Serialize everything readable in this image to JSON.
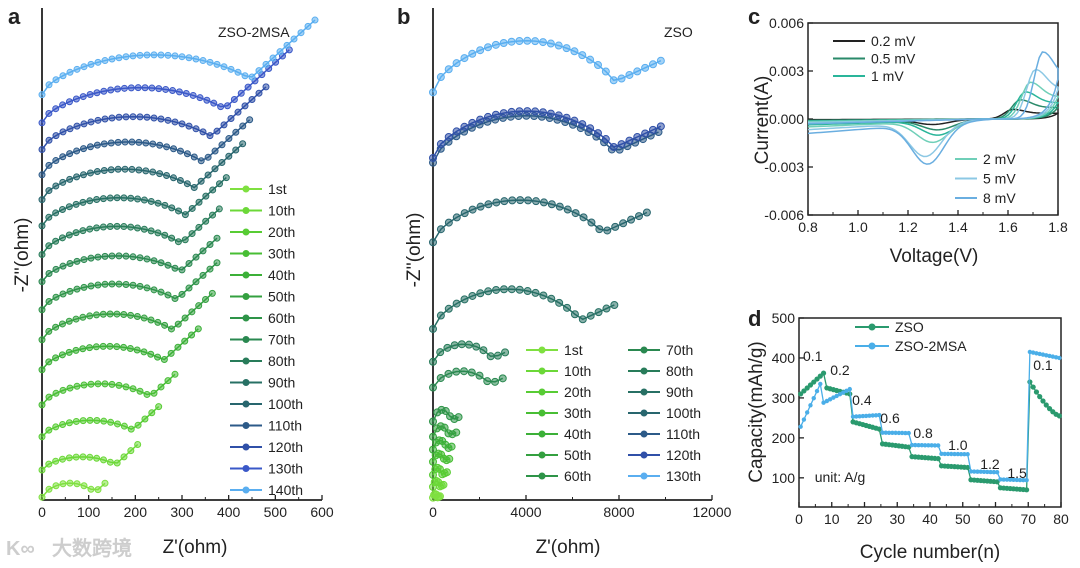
{
  "watermark": {
    "text": "大数跨境",
    "logo": "K∞"
  },
  "chart_data": [
    {
      "panel": "a",
      "type": "scatter",
      "title": "ZSO-2MSA",
      "xlabel": "Z'(ohm)",
      "ylabel": "-Z''(ohm)",
      "xlim": [
        0,
        600
      ],
      "ylim": [
        0,
        1050
      ],
      "xticks": [
        "0",
        "100",
        "200",
        "300",
        "400",
        "500",
        "600"
      ],
      "legend_position": "right",
      "series": [
        {
          "name": "1st",
          "color": "#7fe040",
          "offset": 6,
          "arc_diameter": 120,
          "arc_height": 30,
          "end": 135
        },
        {
          "name": "10th",
          "color": "#6cd838",
          "offset": 64,
          "arc_diameter": 170,
          "arc_height": 28,
          "end": 205
        },
        {
          "name": "20th",
          "color": "#58cc34",
          "offset": 135,
          "arc_diameter": 210,
          "arc_height": 35,
          "end": 250
        },
        {
          "name": "30th",
          "color": "#48be34",
          "offset": 203,
          "arc_diameter": 250,
          "arc_height": 45,
          "end": 285
        },
        {
          "name": "40th",
          "color": "#3cb038",
          "offset": 278,
          "arc_diameter": 280,
          "arc_height": 50,
          "end": 335
        },
        {
          "name": "50th",
          "color": "#34a040",
          "offset": 342,
          "arc_diameter": 300,
          "arc_height": 55,
          "end": 365
        },
        {
          "name": "60th",
          "color": "#2e9448",
          "offset": 406,
          "arc_diameter": 310,
          "arc_height": 55,
          "end": 375
        },
        {
          "name": "70th",
          "color": "#2a8850",
          "offset": 466,
          "arc_diameter": 320,
          "arc_height": 55,
          "end": 375
        },
        {
          "name": "80th",
          "color": "#287c5a",
          "offset": 524,
          "arc_diameter": 320,
          "arc_height": 60,
          "end": 380
        },
        {
          "name": "90th",
          "color": "#277064",
          "offset": 585,
          "arc_diameter": 330,
          "arc_height": 60,
          "end": 395
        },
        {
          "name": "100th",
          "color": "#28666e",
          "offset": 641,
          "arc_diameter": 350,
          "arc_height": 65,
          "end": 430
        },
        {
          "name": "110th",
          "color": "#2c5a88",
          "offset": 694,
          "arc_diameter": 370,
          "arc_height": 70,
          "end": 445
        },
        {
          "name": "120th",
          "color": "#3050a8",
          "offset": 748,
          "arc_diameter": 390,
          "arc_height": 70,
          "end": 480
        },
        {
          "name": "130th",
          "color": "#3a58c8",
          "offset": 805,
          "arc_diameter": 420,
          "arc_height": 75,
          "end": 530
        },
        {
          "name": "140th",
          "color": "#5aaef0",
          "offset": 865,
          "arc_diameter": 480,
          "arc_height": 85,
          "end": 585
        }
      ]
    },
    {
      "panel": "b",
      "type": "scatter",
      "title": "ZSO",
      "xlabel": "Z'(ohm)",
      "ylabel": "-Z''(ohm)",
      "xlim": [
        0,
        12000
      ],
      "ylim": [
        0,
        21000
      ],
      "xticks": [
        "0",
        "4000",
        "8000",
        "12000"
      ],
      "legend_position": "bottom-right, two columns",
      "series": [
        {
          "name": "1st",
          "color": "#7fe040",
          "offset": 100,
          "arc_diameter": 200,
          "arc_height": 150,
          "end": 300
        },
        {
          "name": "10th",
          "color": "#6cd838",
          "offset": 560,
          "arc_diameter": 300,
          "arc_height": 250,
          "end": 450
        },
        {
          "name": "20th",
          "color": "#58cc34",
          "offset": 1070,
          "arc_diameter": 400,
          "arc_height": 300,
          "end": 600
        },
        {
          "name": "30th",
          "color": "#48be34",
          "offset": 1630,
          "arc_diameter": 500,
          "arc_height": 350,
          "end": 700
        },
        {
          "name": "40th",
          "color": "#3cb038",
          "offset": 2150,
          "arc_diameter": 600,
          "arc_height": 400,
          "end": 800
        },
        {
          "name": "50th",
          "color": "#34a040",
          "offset": 2700,
          "arc_diameter": 700,
          "arc_height": 450,
          "end": 1000
        },
        {
          "name": "60th",
          "color": "#2e9448",
          "offset": 3350,
          "arc_diameter": 800,
          "arc_height": 500,
          "end": 1100
        },
        {
          "name": "70th",
          "color": "#2a8850",
          "offset": 4800,
          "arc_diameter": 2500,
          "arc_height": 700,
          "end": 3000
        },
        {
          "name": "80th",
          "color": "#287c5a",
          "offset": 5900,
          "arc_diameter": 2600,
          "arc_height": 750,
          "end": 3100
        },
        {
          "name": "90th",
          "color": "#277064",
          "offset": 7300,
          "arc_diameter": 6500,
          "arc_height": 1700,
          "end": 7800
        },
        {
          "name": "100th",
          "color": "#28666e",
          "offset": 11000,
          "arc_diameter": 7500,
          "arc_height": 1800,
          "end": 9200
        },
        {
          "name": "110th",
          "color": "#2c5a88",
          "offset": 14400,
          "arc_diameter": 8000,
          "arc_height": 2000,
          "end": 9700
        },
        {
          "name": "120th",
          "color": "#3050a8",
          "offset": 14600,
          "arc_diameter": 8000,
          "arc_height": 2000,
          "end": 9800
        },
        {
          "name": "130th",
          "color": "#5aaef0",
          "offset": 17400,
          "arc_diameter": 8000,
          "arc_height": 2200,
          "end": 9800
        }
      ]
    },
    {
      "panel": "c",
      "type": "line",
      "xlabel": "Voltage(V)",
      "ylabel": "Current(A)",
      "xlim": [
        0.8,
        1.8
      ],
      "ylim": [
        -0.006,
        0.006
      ],
      "xticks": [
        "0.8",
        "1.0",
        "1.2",
        "1.4",
        "1.6",
        "1.8"
      ],
      "yticks": [
        "-0.006",
        "-0.003",
        "0.000",
        "0.003",
        "0.006"
      ],
      "legend_position": "top-left and bottom-right",
      "series": [
        {
          "name": "0.2 mV",
          "color": "#222222",
          "anodic_peak": [
            1.62,
            0.0006
          ],
          "cathodic_peak": [
            1.3,
            -0.0003
          ]
        },
        {
          "name": "0.5 mV",
          "color": "#2a8a6a",
          "anodic_peak": [
            1.65,
            0.0012
          ],
          "cathodic_peak": [
            1.32,
            -0.0006
          ]
        },
        {
          "name": "1 mV",
          "color": "#2ab59a",
          "anodic_peak": [
            1.67,
            0.0017
          ],
          "cathodic_peak": [
            1.32,
            -0.0009
          ]
        },
        {
          "name": "2 mV",
          "color": "#6fcfb8",
          "anodic_peak": [
            1.69,
            0.0023
          ],
          "cathodic_peak": [
            1.3,
            -0.0013
          ]
        },
        {
          "name": "5 mV",
          "color": "#8cc8e4",
          "anodic_peak": [
            1.71,
            0.0031
          ],
          "cathodic_peak": [
            1.27,
            -0.0021
          ]
        },
        {
          "name": "8 mV",
          "color": "#6aaee0",
          "anodic_peak": [
            1.74,
            0.0042
          ],
          "cathodic_peak": [
            1.28,
            -0.0025
          ]
        }
      ]
    },
    {
      "panel": "d",
      "type": "line",
      "xlabel": "Cycle number(n)",
      "ylabel": "Capacity(mAh/g)",
      "xlim": [
        0,
        80
      ],
      "ylim": [
        27,
        500
      ],
      "xticks": [
        "0",
        "10",
        "20",
        "30",
        "40",
        "50",
        "60",
        "70",
        "80"
      ],
      "yticks": [
        "100",
        "200",
        "300",
        "400",
        "500"
      ],
      "legend_position": "top-center",
      "annotation": "unit: A/g",
      "rate_labels": [
        {
          "text": "0.1",
          "cycle": 4.2,
          "capacity": 405
        },
        {
          "text": "0.2",
          "cycle": 12.5,
          "capacity": 370
        },
        {
          "text": "0.4",
          "cycle": 19.2,
          "capacity": 295
        },
        {
          "text": "0.6",
          "cycle": 27.8,
          "capacity": 250
        },
        {
          "text": "0.8",
          "cycle": 37.9,
          "capacity": 212
        },
        {
          "text": "1.0",
          "cycle": 48.5,
          "capacity": 182
        },
        {
          "text": "1.2",
          "cycle": 58.3,
          "capacity": 135
        },
        {
          "text": "1.5",
          "cycle": 66.6,
          "capacity": 112
        },
        {
          "text": "0.1",
          "cycle": 74.5,
          "capacity": 382
        }
      ],
      "series": [
        {
          "name": "ZSO",
          "color": "#2a9a6e",
          "segments": [
            {
              "cycles": [
                1,
                8
              ],
              "capacity": [
                310,
                362
              ]
            },
            {
              "cycles": [
                9,
                16
              ],
              "capacity": [
                325,
                310
              ]
            },
            {
              "cycles": [
                17,
                25
              ],
              "capacity": [
                240,
                222
              ]
            },
            {
              "cycles": [
                26,
                34
              ],
              "capacity": [
                185,
                177
              ]
            },
            {
              "cycles": [
                35,
                43
              ],
              "capacity": [
                153,
                148
              ]
            },
            {
              "cycles": [
                44,
                52
              ],
              "capacity": [
                130,
                126
              ]
            },
            {
              "cycles": [
                53,
                61
              ],
              "capacity": [
                95,
                90
              ]
            },
            {
              "cycles": [
                62,
                70
              ],
              "capacity": [
                75,
                70
              ]
            },
            {
              "cycles": [
                71,
                80
              ],
              "capacity": [
                340,
                255
              ]
            }
          ]
        },
        {
          "name": "ZSO-2MSA",
          "color": "#4aaee8",
          "segments": [
            {
              "cycles": [
                1,
                7
              ],
              "capacity": [
                228,
                335
              ]
            },
            {
              "cycles": [
                8,
                16
              ],
              "capacity": [
                288,
                322
              ]
            },
            {
              "cycles": [
                17,
                25
              ],
              "capacity": [
                253,
                257
              ]
            },
            {
              "cycles": [
                26,
                34
              ],
              "capacity": [
                213,
                212
              ]
            },
            {
              "cycles": [
                35,
                43
              ],
              "capacity": [
                182,
                181
              ]
            },
            {
              "cycles": [
                44,
                52
              ],
              "capacity": [
                160,
                159
              ]
            },
            {
              "cycles": [
                53,
                61
              ],
              "capacity": [
                116,
                114
              ]
            },
            {
              "cycles": [
                62,
                70
              ],
              "capacity": [
                96,
                94
              ]
            },
            {
              "cycles": [
                71,
                80
              ],
              "capacity": [
                415,
                400
              ]
            }
          ]
        }
      ]
    }
  ]
}
